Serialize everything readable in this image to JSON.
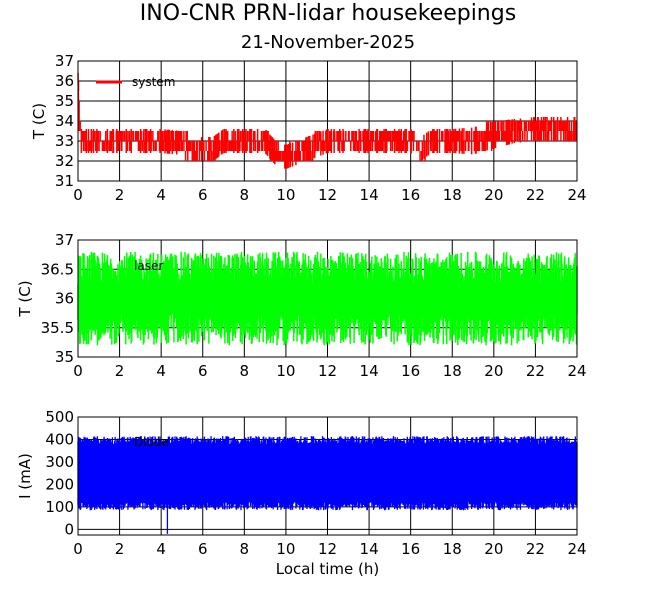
{
  "chart_data": [
    {
      "type": "line",
      "title": "INO-CNR PRN-lidar housekeepings",
      "subtitle": "21-November-2025",
      "xlabel": "",
      "ylabel": "T (C)",
      "xlim": [
        0,
        24
      ],
      "ylim": [
        31,
        37
      ],
      "xticks": [
        0,
        2,
        4,
        6,
        8,
        10,
        12,
        14,
        16,
        18,
        20,
        22,
        24
      ],
      "yticks": [
        31,
        32,
        33,
        34,
        35,
        36,
        37
      ],
      "grid": true,
      "legend": "top-left",
      "series": [
        {
          "name": "system",
          "color": "#ff0000",
          "x": [
            0,
            0.05,
            0.15,
            0.5,
            1,
            2,
            3,
            4,
            5,
            5.5,
            6,
            6.5,
            7,
            8,
            9,
            9.5,
            10,
            10.5,
            11,
            12,
            13,
            14,
            15,
            16,
            16.5,
            17,
            18,
            19,
            20,
            21,
            22,
            23,
            24
          ],
          "y": [
            36.4,
            34.5,
            33.0,
            33.0,
            33.0,
            33.0,
            33.0,
            33.0,
            32.9,
            32.6,
            32.6,
            32.6,
            33.0,
            33.0,
            33.0,
            32.4,
            32.2,
            32.4,
            32.6,
            33.0,
            33.0,
            33.0,
            33.0,
            33.0,
            32.6,
            33.0,
            33.0,
            33.0,
            33.3,
            33.5,
            33.6,
            33.6,
            33.6
          ],
          "band": [
            0.5,
            0.8,
            0.8,
            0.8,
            0.8,
            0.8,
            0.8,
            0.8,
            0.8,
            0.8,
            0.8,
            0.8,
            0.8,
            0.8,
            0.8,
            0.8,
            0.8,
            0.8,
            0.8,
            0.8,
            0.8,
            0.8,
            0.8,
            0.8,
            0.8,
            0.8,
            0.8,
            0.9,
            0.9,
            0.8,
            0.8,
            0.8,
            0.8
          ]
        }
      ]
    },
    {
      "type": "line",
      "xlabel": "",
      "ylabel": "T (C)",
      "xlim": [
        0,
        24
      ],
      "ylim": [
        35,
        37
      ],
      "xticks": [
        0,
        2,
        4,
        6,
        8,
        10,
        12,
        14,
        16,
        18,
        20,
        22,
        24
      ],
      "yticks": [
        35,
        35.5,
        36,
        36.5,
        37
      ],
      "grid": true,
      "legend": "top-left",
      "series": [
        {
          "name": "laser",
          "color": "#00ff00",
          "x": [
            0,
            24
          ],
          "y": [
            36.0,
            36.0
          ],
          "band": [
            0.8,
            0.8
          ]
        }
      ]
    },
    {
      "type": "line",
      "xlabel": "Local time (h)",
      "ylabel": "I (mA)",
      "xlim": [
        0,
        24
      ],
      "ylim": [
        -25,
        500
      ],
      "xticks": [
        0,
        2,
        4,
        6,
        8,
        10,
        12,
        14,
        16,
        18,
        20,
        22,
        24
      ],
      "yticks": [
        0,
        100,
        200,
        300,
        400,
        500
      ],
      "grid": true,
      "legend": "top-left",
      "series": [
        {
          "name": "Diode",
          "color": "#0000ff",
          "x": [
            0,
            24
          ],
          "y": [
            250,
            250
          ],
          "band": [
            150,
            150
          ],
          "spike_down": [
            {
              "x": 4.3,
              "y": -20
            }
          ]
        }
      ]
    }
  ]
}
